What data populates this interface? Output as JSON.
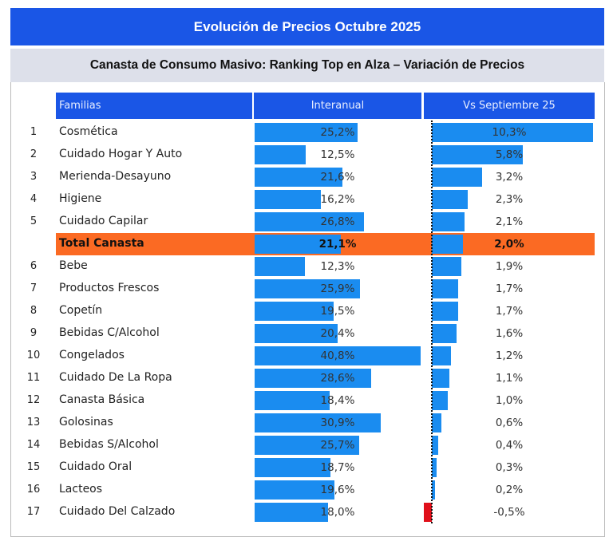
{
  "title": "Evolución de Precios Octubre 2025",
  "subtitle": "Canasta de Consumo Masivo: Ranking Top en Alza – Variación de Precios",
  "chart_data": {
    "type": "table",
    "headers": [
      "Familias",
      "Interanual",
      "Vs Septiembre 25"
    ],
    "rows": [
      {
        "rank": "1",
        "family": "Cosmética",
        "interanual": 25.2,
        "interanual_label": "25,2%",
        "vs_sep": 10.3,
        "vs_sep_label": "10,3%"
      },
      {
        "rank": "2",
        "family": "Cuidado Hogar Y Auto",
        "interanual": 12.5,
        "interanual_label": "12,5%",
        "vs_sep": 5.8,
        "vs_sep_label": "5,8%"
      },
      {
        "rank": "3",
        "family": "Merienda-Desayuno",
        "interanual": 21.6,
        "interanual_label": "21,6%",
        "vs_sep": 3.2,
        "vs_sep_label": "3,2%"
      },
      {
        "rank": "4",
        "family": "Higiene",
        "interanual": 16.2,
        "interanual_label": "16,2%",
        "vs_sep": 2.3,
        "vs_sep_label": "2,3%"
      },
      {
        "rank": "5",
        "family": "Cuidado Capilar",
        "interanual": 26.8,
        "interanual_label": "26,8%",
        "vs_sep": 2.1,
        "vs_sep_label": "2,1%"
      },
      {
        "rank": "",
        "family": "Total Canasta",
        "interanual": 21.1,
        "interanual_label": "21,1%",
        "vs_sep": 2.0,
        "vs_sep_label": "2,0%",
        "highlight": true
      },
      {
        "rank": "6",
        "family": "Bebe",
        "interanual": 12.3,
        "interanual_label": "12,3%",
        "vs_sep": 1.9,
        "vs_sep_label": "1,9%"
      },
      {
        "rank": "7",
        "family": "Productos Frescos",
        "interanual": 25.9,
        "interanual_label": "25,9%",
        "vs_sep": 1.7,
        "vs_sep_label": "1,7%"
      },
      {
        "rank": "8",
        "family": "Copetín",
        "interanual": 19.5,
        "interanual_label": "19,5%",
        "vs_sep": 1.7,
        "vs_sep_label": "1,7%"
      },
      {
        "rank": "9",
        "family": "Bebidas C/Alcohol",
        "interanual": 20.4,
        "interanual_label": "20,4%",
        "vs_sep": 1.6,
        "vs_sep_label": "1,6%"
      },
      {
        "rank": "10",
        "family": "Congelados",
        "interanual": 40.8,
        "interanual_label": "40,8%",
        "vs_sep": 1.2,
        "vs_sep_label": "1,2%"
      },
      {
        "rank": "11",
        "family": "Cuidado De La Ropa",
        "interanual": 28.6,
        "interanual_label": "28,6%",
        "vs_sep": 1.1,
        "vs_sep_label": "1,1%"
      },
      {
        "rank": "12",
        "family": "Canasta Básica",
        "interanual": 18.4,
        "interanual_label": "18,4%",
        "vs_sep": 1.0,
        "vs_sep_label": "1,0%"
      },
      {
        "rank": "13",
        "family": "Golosinas",
        "interanual": 30.9,
        "interanual_label": "30,9%",
        "vs_sep": 0.6,
        "vs_sep_label": "0,6%"
      },
      {
        "rank": "14",
        "family": "Bebidas S/Alcohol",
        "interanual": 25.7,
        "interanual_label": "25,7%",
        "vs_sep": 0.4,
        "vs_sep_label": "0,4%"
      },
      {
        "rank": "15",
        "family": "Cuidado Oral",
        "interanual": 18.7,
        "interanual_label": "18,7%",
        "vs_sep": 0.3,
        "vs_sep_label": "0,3%"
      },
      {
        "rank": "16",
        "family": "Lacteos",
        "interanual": 19.6,
        "interanual_label": "19,6%",
        "vs_sep": 0.2,
        "vs_sep_label": "0,2%"
      },
      {
        "rank": "17",
        "family": "Cuidado Del Calzado",
        "interanual": 18.0,
        "interanual_label": "18,0%",
        "vs_sep": -0.5,
        "vs_sep_label": "-0,5%"
      }
    ],
    "colors": {
      "bar": "#1a8cf0",
      "negative": "#e0101a",
      "highlight": "#fb6a23",
      "header": "#1a56e6"
    }
  }
}
